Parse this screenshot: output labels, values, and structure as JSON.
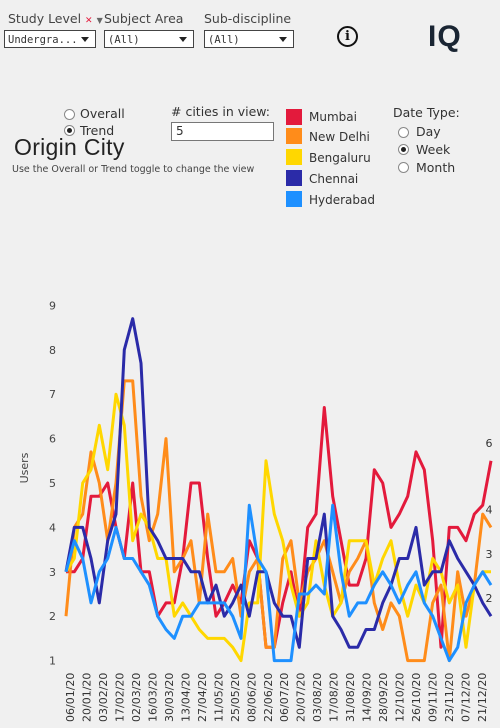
{
  "filters": {
    "study_level": {
      "label": "Study Level",
      "value": "Undergra..."
    },
    "subject_area": {
      "label": "Subject Area",
      "value": "(All)"
    },
    "sub_discipline": {
      "label": "Sub-discipline",
      "value": "(All)"
    }
  },
  "brand": {
    "info_icon": "info-icon",
    "logo": "IQ"
  },
  "view_toggle": {
    "options": [
      "Overall",
      "Trend"
    ],
    "selected": "Trend"
  },
  "cities_in_view": {
    "label": "# cities in view:",
    "value": "5"
  },
  "header": {
    "title": "Origin City",
    "subtitle": "Use the Overall or Trend toggle to change the view"
  },
  "legend": [
    {
      "name": "Mumbai",
      "color": "#e31a3c"
    },
    {
      "name": "New Delhi",
      "color": "#ff8c1a"
    },
    {
      "name": "Bengaluru",
      "color": "#ffd700"
    },
    {
      "name": "Chennai",
      "color": "#2b2ba8"
    },
    {
      "name": "Hyderabad",
      "color": "#1e90ff"
    }
  ],
  "date_type": {
    "label": "Date Type:",
    "options": [
      "Day",
      "Week",
      "Month"
    ],
    "selected": "Week"
  },
  "chart_data": {
    "type": "line",
    "ylabel": "Users",
    "xlabel": "",
    "ylim": [
      0.5,
      9.6
    ],
    "yticks": [
      1,
      2,
      3,
      4,
      5,
      6,
      7,
      8,
      9
    ],
    "x_tick_labels": [
      "06/01/20",
      "20/01/20",
      "03/02/20",
      "17/02/20",
      "02/03/20",
      "16/03/20",
      "30/03/20",
      "13/04/20",
      "27/04/20",
      "11/05/20",
      "25/05/20",
      "08/06/20",
      "22/06/20",
      "06/07/20",
      "20/07/20",
      "03/08/20",
      "17/08/20",
      "31/08/20",
      "14/09/20",
      "28/09/20",
      "12/10/20",
      "26/10/20",
      "09/11/20",
      "23/11/20",
      "07/12/20",
      "21/12/20"
    ],
    "points_per_series": 52,
    "series": [
      {
        "name": "Mumbai",
        "color": "#e31a3c",
        "end_label": "6",
        "values": [
          3,
          3,
          3.3,
          4.7,
          4.7,
          5,
          4,
          3.3,
          5,
          3,
          3,
          2,
          2.3,
          2.3,
          3.3,
          5,
          5,
          3.3,
          2,
          2.3,
          2.7,
          2.3,
          3.7,
          3.3,
          1.3,
          1.3,
          2.3,
          3,
          2,
          4,
          4.3,
          6.7,
          4.7,
          3.7,
          2.7,
          2.7,
          3.3,
          5.3,
          5,
          4,
          4.3,
          4.7,
          5.7,
          5.3,
          3.7,
          1.3,
          4,
          4,
          3.7,
          4.3,
          4.5,
          5.5
        ]
      },
      {
        "name": "New Delhi",
        "color": "#ff8c1a",
        "end_label": "4",
        "values": [
          2,
          4,
          4.3,
          5.7,
          5,
          3.7,
          5,
          7.3,
          7.3,
          4.7,
          3.7,
          4.3,
          6,
          3,
          3.3,
          3.7,
          2.3,
          4.3,
          3,
          3,
          3.3,
          2,
          3,
          3.3,
          1.3,
          1.3,
          3.3,
          3.7,
          2.3,
          3,
          3.3,
          3.7,
          3,
          2.3,
          3,
          3.3,
          3.7,
          2.3,
          1.7,
          2.3,
          2,
          1,
          1,
          1,
          2.3,
          2.7,
          1,
          3,
          2,
          2.7,
          4.3,
          4
        ]
      },
      {
        "name": "Bengaluru",
        "color": "#ffd700",
        "end_label": "3",
        "values": [
          3,
          3.3,
          5,
          5.3,
          6.3,
          5.3,
          7,
          6.3,
          3.7,
          4.3,
          4,
          3.3,
          3.3,
          2,
          2.3,
          2,
          1.7,
          1.5,
          1.5,
          1.5,
          1.3,
          1,
          2.3,
          2.3,
          5.5,
          4.3,
          3.7,
          2.7,
          2,
          2.3,
          3.7,
          2.7,
          2,
          2.3,
          3.7,
          3.7,
          3.7,
          2.7,
          3.3,
          3.7,
          2.7,
          2,
          2.7,
          2.3,
          3.3,
          3,
          2.3,
          2.7,
          1.3,
          2.7,
          3,
          3
        ]
      },
      {
        "name": "Chennai",
        "color": "#2b2ba8",
        "end_label": "2",
        "values": [
          3,
          4,
          4,
          3.3,
          2.3,
          3.7,
          4.3,
          8,
          8.7,
          7.7,
          4,
          3.7,
          3.3,
          3.3,
          3.3,
          3,
          3,
          2.3,
          2.7,
          2,
          2.3,
          2.7,
          2,
          3,
          3,
          2.3,
          2,
          2,
          1.3,
          3.3,
          3.3,
          4.3,
          2,
          1.7,
          1.3,
          1.3,
          1.7,
          1.7,
          2.3,
          2.7,
          3.3,
          3.3,
          4,
          2.7,
          3,
          3,
          3.7,
          3.3,
          3,
          2.7,
          2.3,
          2
        ]
      },
      {
        "name": "Hyderabad",
        "color": "#1e90ff",
        "end_label": "",
        "values": [
          3,
          3.7,
          3.3,
          2.3,
          3,
          3.3,
          4,
          3.3,
          3.3,
          3,
          2.7,
          2,
          1.7,
          1.5,
          2,
          2,
          2.3,
          2.3,
          2.3,
          2.3,
          2,
          1.5,
          4.5,
          3.3,
          3,
          1,
          1,
          1,
          2.5,
          2.5,
          2.7,
          2.5,
          4.5,
          3,
          2,
          2.3,
          2.3,
          2.7,
          3,
          2.7,
          2.3,
          2.7,
          3,
          2.3,
          2,
          1.5,
          1,
          1.3,
          2.3,
          2.7,
          3,
          2.7
        ]
      }
    ]
  }
}
